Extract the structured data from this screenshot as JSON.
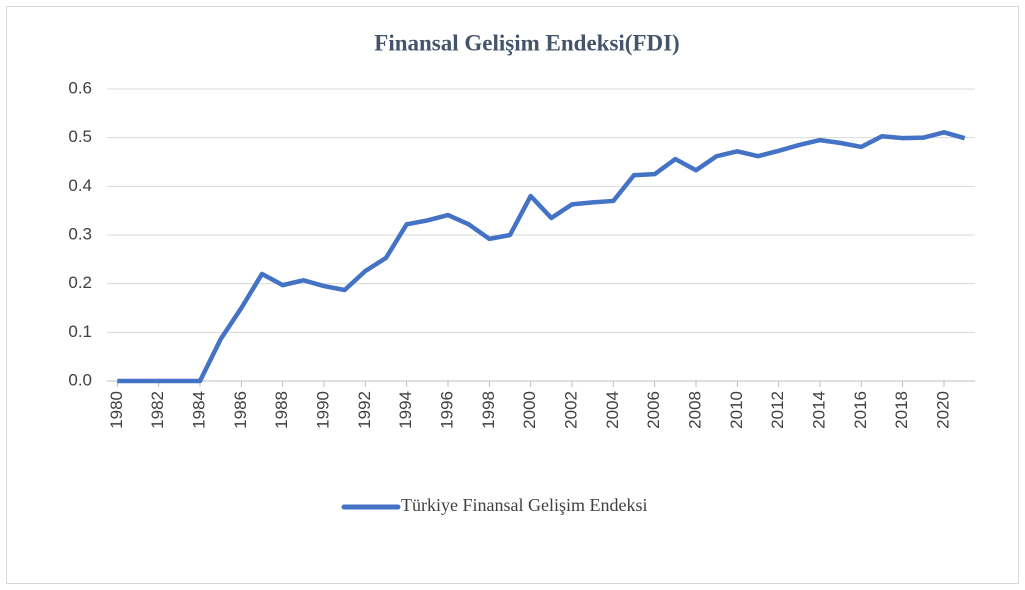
{
  "chart_data": {
    "type": "line",
    "title": "Finansal Gelişim Endeksi(FDI)",
    "x": [
      1980,
      1981,
      1982,
      1983,
      1984,
      1985,
      1986,
      1987,
      1988,
      1989,
      1990,
      1991,
      1992,
      1993,
      1994,
      1995,
      1996,
      1997,
      1998,
      1999,
      2000,
      2001,
      2002,
      2003,
      2004,
      2005,
      2006,
      2007,
      2008,
      2009,
      2010,
      2011,
      2012,
      2013,
      2014,
      2015,
      2016,
      2017,
      2018,
      2019,
      2020,
      2021
    ],
    "series": [
      {
        "name": "Türkiye Finansal Gelişim Endeksi",
        "color": "#4472c4",
        "values": [
          0,
          0,
          0,
          0,
          0,
          0.086,
          0.15,
          0.22,
          0.197,
          0.207,
          0.195,
          0.187,
          0.226,
          0.253,
          0.322,
          0.33,
          0.341,
          0.322,
          0.292,
          0.3,
          0.38,
          0.335,
          0.363,
          0.367,
          0.37,
          0.423,
          0.425,
          0.456,
          0.433,
          0.462,
          0.472,
          0.462,
          0.473,
          0.485,
          0.495,
          0.489,
          0.481,
          0.503,
          0.499,
          0.5,
          0.511,
          0.499
        ]
      }
    ],
    "xlim": [
      1979.5,
      2021.5
    ],
    "xticks": [
      1980,
      1982,
      1984,
      1986,
      1988,
      1990,
      1992,
      1994,
      1996,
      1998,
      2000,
      2002,
      2004,
      2006,
      2008,
      2010,
      2012,
      2014,
      2016,
      2018,
      2020
    ],
    "ylim": [
      0,
      0.6
    ],
    "yticks": [
      {
        "value": 0,
        "label": "0.0"
      },
      0.1,
      0.2,
      0.3,
      0.4,
      0.5,
      0.6
    ],
    "grid": true,
    "legend": "bottom"
  }
}
